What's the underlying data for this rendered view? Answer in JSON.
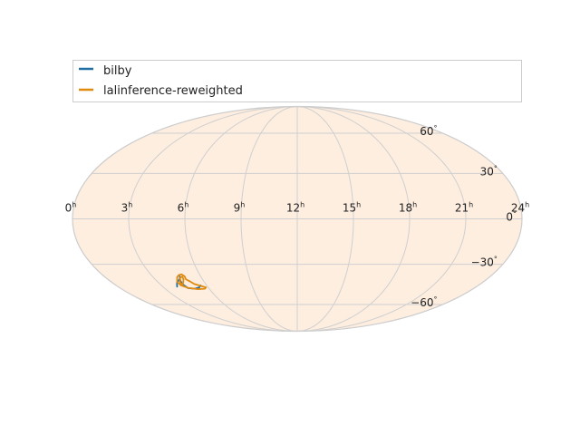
{
  "chart_data": {
    "type": "scatter",
    "projection": "mollweide",
    "title": "",
    "xlabel": "",
    "ylabel": "",
    "x_axis": {
      "quantity": "right ascension",
      "direction": "decreasing to the right",
      "range_hours": [
        0,
        24
      ],
      "tick_labels": [
        {
          "value": 24,
          "base": "24",
          "sup": "h"
        },
        {
          "value": 21,
          "base": "21",
          "sup": "h"
        },
        {
          "value": 18,
          "base": "18",
          "sup": "h"
        },
        {
          "value": 15,
          "base": "15",
          "sup": "h"
        },
        {
          "value": 12,
          "base": "12",
          "sup": "h"
        },
        {
          "value": 9,
          "base": "9",
          "sup": "h"
        },
        {
          "value": 6,
          "base": "6",
          "sup": "h"
        },
        {
          "value": 3,
          "base": "3",
          "sup": "h"
        },
        {
          "value": 0,
          "base": "0",
          "sup": "h"
        }
      ]
    },
    "y_axis": {
      "quantity": "declination",
      "range_degrees": [
        -90,
        90
      ],
      "tick_labels": [
        {
          "value": 60,
          "base": "60",
          "sup": "°"
        },
        {
          "value": 30,
          "base": "30",
          "sup": "°"
        },
        {
          "value": 0,
          "base": "0",
          "sup": "°"
        },
        {
          "value": -30,
          "base": "−30",
          "sup": "°"
        },
        {
          "value": -60,
          "base": "−60",
          "sup": "°"
        }
      ]
    },
    "grid": true,
    "meridian_lines_hours": [
      3,
      6,
      9,
      12,
      15,
      18,
      21
    ],
    "parallel_lines_degrees": [
      -60,
      -30,
      0,
      30,
      60
    ],
    "legend": {
      "placement": "top, above the map",
      "entries": [
        {
          "label": "bilby",
          "color": "#1f6fa3"
        },
        {
          "label": "lalinference-reweighted",
          "color": "#e08a10"
        }
      ]
    },
    "series": [
      {
        "name": "bilby",
        "color": "#1f6fa3",
        "kind": "credible-region contour",
        "contours": [
          [
            [
              4.7,
              -38.5
            ],
            [
              4.55,
              -41
            ],
            [
              4.45,
              -44
            ],
            [
              4.6,
              -47
            ],
            [
              5.0,
              -47.5
            ],
            [
              5.4,
              -46.5
            ],
            [
              5.6,
              -45
            ]
          ],
          [
            [
              4.55,
              -40.5
            ],
            [
              4.2,
              -43
            ],
            [
              3.95,
              -46
            ]
          ]
        ]
      },
      {
        "name": "lalinference-reweighted",
        "color": "#e08a10",
        "kind": "credible-region contour",
        "contours": [
          [
            [
              4.5,
              -39
            ],
            [
              4.7,
              -37.5
            ],
            [
              4.9,
              -37
            ],
            [
              5.0,
              -38.5
            ],
            [
              4.95,
              -40.5
            ],
            [
              5.1,
              -42
            ],
            [
              5.25,
              -44
            ],
            [
              5.6,
              -45.5
            ],
            [
              5.85,
              -46.5
            ],
            [
              5.7,
              -47.5
            ],
            [
              5.2,
              -47.8
            ],
            [
              4.6,
              -46.8
            ],
            [
              4.3,
              -45
            ],
            [
              4.25,
              -42.5
            ],
            [
              4.5,
              -39
            ]
          ],
          [
            [
              4.65,
              -39.5
            ],
            [
              4.85,
              -38.5
            ],
            [
              4.8,
              -40.5
            ],
            [
              4.6,
              -43
            ],
            [
              4.45,
              -44.5
            ],
            [
              4.4,
              -43
            ],
            [
              4.65,
              -39.5
            ]
          ]
        ]
      }
    ],
    "colors": {
      "map_fill": "#feeee0",
      "map_border": "#cccccc",
      "grid": "#cfcfcf",
      "text": "#222222"
    }
  }
}
